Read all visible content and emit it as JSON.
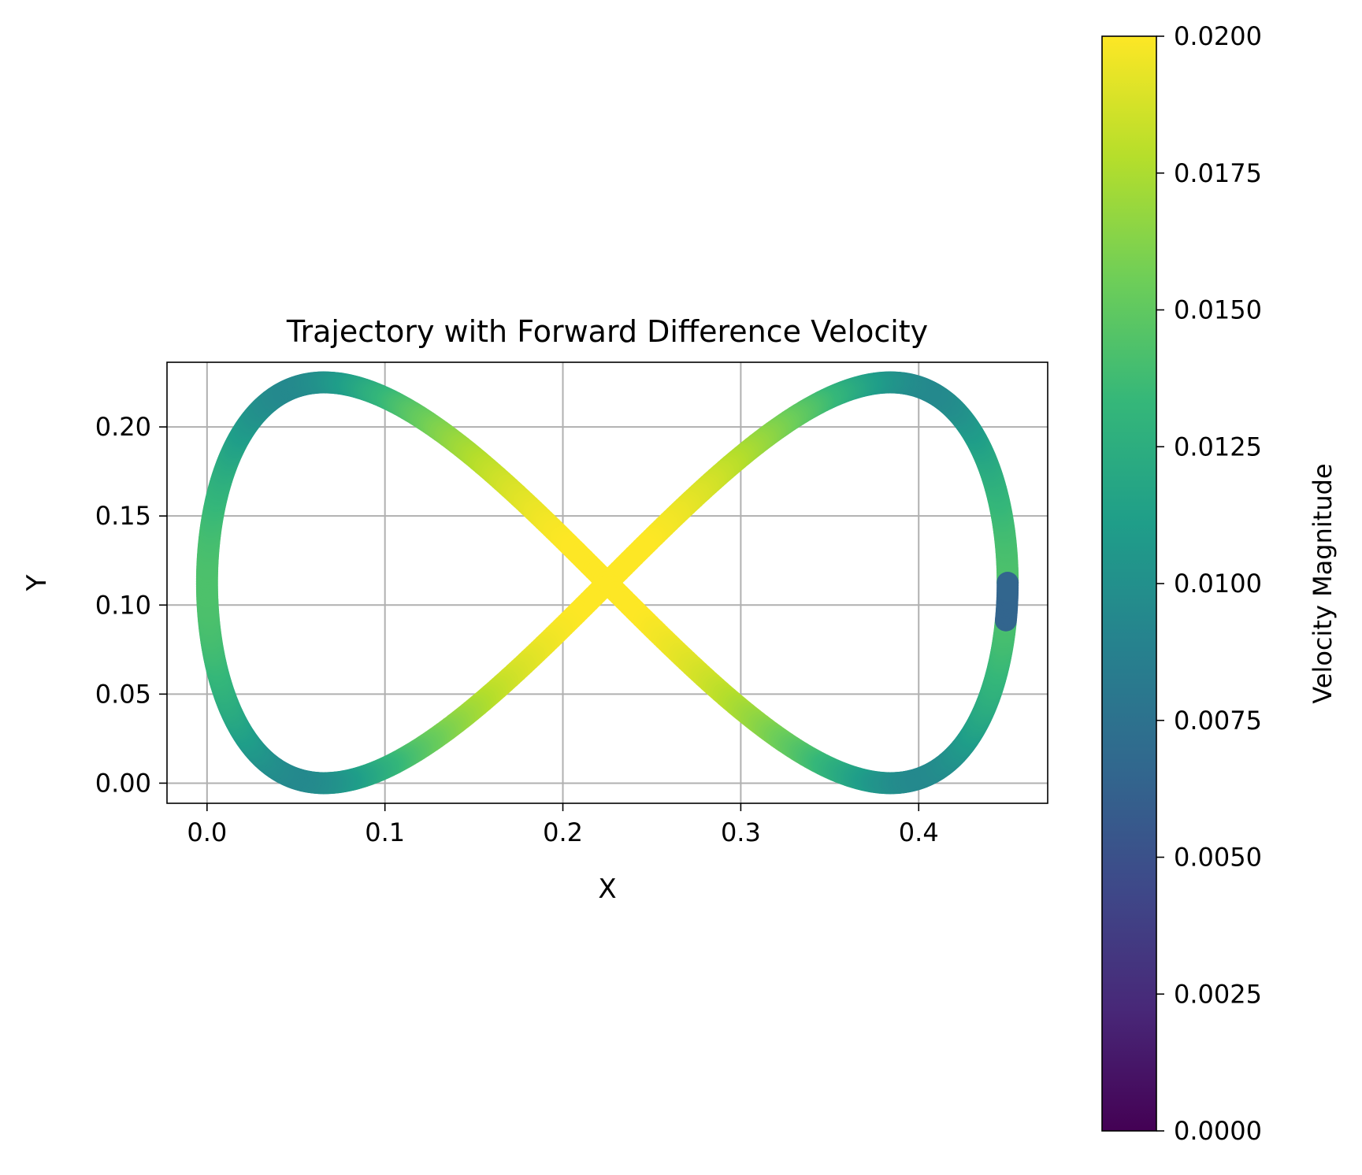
{
  "chart_data": {
    "type": "scatter",
    "title": "Trajectory with Forward Difference Velocity",
    "xlabel": "X",
    "ylabel": "Y",
    "xlim": [
      -0.0225,
      0.4725
    ],
    "ylim": [
      -0.0113,
      0.2363
    ],
    "xticks": [
      "0.0",
      "0.1",
      "0.2",
      "0.3",
      "0.4"
    ],
    "xtick_values": [
      0.0,
      0.1,
      0.2,
      0.3,
      0.4
    ],
    "yticks": [
      "0.00",
      "0.05",
      "0.10",
      "0.15",
      "0.20"
    ],
    "ytick_values": [
      0.0,
      0.05,
      0.1,
      0.15,
      0.2
    ],
    "grid": true,
    "trajectory": {
      "shape": "lemniscate (figure-eight)",
      "x_center": 0.225,
      "x_amplitude": 0.225,
      "y_center": 0.1125,
      "y_amplitude": 0.1125,
      "start": {
        "x": 0.45,
        "y": 0.1125
      },
      "point_count": 100
    },
    "colorbar": {
      "label": "Velocity Magnitude",
      "colormap": "viridis",
      "range": [
        0.0,
        0.02
      ],
      "ticks": [
        "0.0000",
        "0.0025",
        "0.0050",
        "0.0075",
        "0.0100",
        "0.0125",
        "0.0150",
        "0.0175",
        "0.0200"
      ],
      "tick_values": [
        0.0,
        0.0025,
        0.005,
        0.0075,
        0.01,
        0.0125,
        0.015,
        0.0175,
        0.02
      ]
    },
    "colors": {
      "grid": "#b0b0b0",
      "axes": "#000000",
      "viridis_stops": [
        "#440154",
        "#482878",
        "#3e4989",
        "#31688e",
        "#26828e",
        "#1f9e89",
        "#35b779",
        "#6ece58",
        "#b5de2b",
        "#fde725"
      ]
    }
  }
}
